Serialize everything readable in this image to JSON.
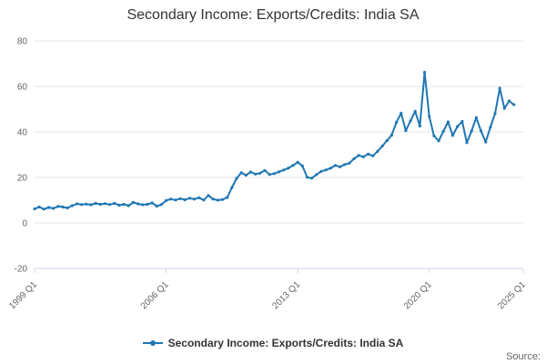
{
  "title": "Secondary Income: Exports/Credits: India SA",
  "legend": {
    "label": "Secondary Income: Exports/Credits: India SA"
  },
  "source_label": "Source:",
  "colors": {
    "line": "#1f77b4",
    "grid": "#e6e6e6",
    "axis": "#ccd6eb",
    "tick_text": "#666666",
    "title_text": "#333333"
  },
  "chart_data": {
    "type": "line",
    "title": "Secondary Income: Exports/Credits: India SA",
    "xlabel": "",
    "ylabel": "",
    "ylim": [
      -20,
      80
    ],
    "yticks": [
      -20,
      0,
      20,
      40,
      60,
      80
    ],
    "grid": "horizontal",
    "legend_position": "bottom",
    "x_axis_span_quarters": 104,
    "xticks": [
      {
        "label": "1999 Q1",
        "quarter_index": 0
      },
      {
        "label": "2006 Q1",
        "quarter_index": 28
      },
      {
        "label": "2013 Q1",
        "quarter_index": 56
      },
      {
        "label": "2020 Q1",
        "quarter_index": 84
      },
      {
        "label": "2025 Q1",
        "quarter_index": 104
      }
    ],
    "series": [
      {
        "name": "Secondary Income: Exports/Credits: India SA",
        "start": "1999 Q1",
        "frequency": "quarterly",
        "values": [
          6.2,
          7.0,
          6.1,
          6.8,
          6.4,
          7.3,
          7.0,
          6.6,
          7.6,
          8.4,
          8.1,
          8.3,
          8.0,
          8.6,
          8.2,
          8.5,
          8.1,
          8.6,
          7.8,
          8.2,
          7.6,
          9.0,
          8.4,
          8.0,
          8.2,
          8.8,
          7.4,
          8.1,
          9.9,
          10.5,
          10.1,
          10.7,
          10.2,
          10.9,
          10.5,
          11.1,
          10.1,
          12.1,
          10.5,
          10.0,
          10.3,
          11.2,
          15.6,
          19.6,
          22.1,
          21.0,
          22.4,
          21.5,
          21.9,
          23.1,
          21.3,
          21.7,
          22.5,
          23.3,
          24.1,
          25.3,
          26.7,
          25.1,
          20.1,
          19.7,
          21.3,
          22.7,
          23.3,
          24.1,
          25.3,
          24.7,
          25.7,
          26.3,
          28.3,
          29.7,
          29.1,
          30.3,
          29.5,
          31.5,
          33.8,
          36.2,
          38.6,
          44.2,
          48.3,
          40.6,
          44.9,
          49.1,
          42.6,
          66.2,
          46.9,
          38.3,
          36.1,
          40.3,
          44.4,
          38.5,
          42.4,
          44.6,
          35.3,
          40.4,
          46.3,
          40.5,
          35.6,
          42.1,
          48.1,
          59.2,
          50.4,
          53.6,
          52.0
        ]
      }
    ]
  }
}
